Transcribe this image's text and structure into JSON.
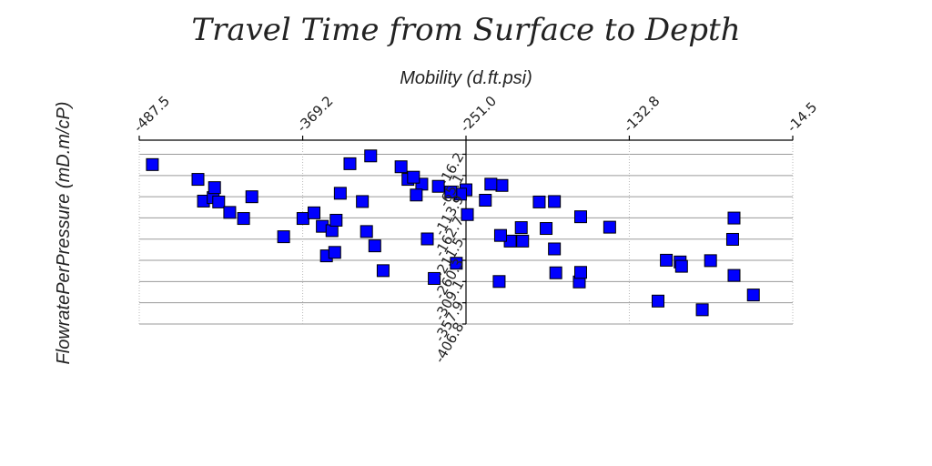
{
  "chart_data": {
    "type": "scatter",
    "title": "Travel Time from Surface to Depth",
    "xlabel": "Mobility (d.ft.psi)",
    "ylabel": "FlowratePerPressure (mD.m/cP)",
    "x_axis_position": "top",
    "x_ticks": [
      "-487.5",
      "-369.2",
      "-251.0",
      "-132.8",
      "-14.5"
    ],
    "xlim": [
      -487.5,
      -14.5
    ],
    "y_ticks": [
      "-16.2",
      "-65.1",
      "-113.9",
      "-162.7",
      "-211.5",
      "-260.3",
      "-309.1",
      "-357.9",
      "-406.8"
    ],
    "ylim": [
      16.2,
      -406.8
    ],
    "grid": true,
    "legend": "none",
    "marker": "square",
    "marker_color": "#0000ff",
    "points": [
      [
        -478,
        -40
      ],
      [
        -445,
        -74
      ],
      [
        -441,
        -124
      ],
      [
        -434,
        -116
      ],
      [
        -433,
        -93
      ],
      [
        -430,
        -126
      ],
      [
        -422,
        -150
      ],
      [
        -412,
        -164
      ],
      [
        -406,
        -114
      ],
      [
        -383,
        -206
      ],
      [
        -369,
        -164
      ],
      [
        -361,
        -151
      ],
      [
        -355,
        -182
      ],
      [
        -352,
        -250
      ],
      [
        -348,
        -192
      ],
      [
        -346,
        -242
      ],
      [
        -345,
        -168
      ],
      [
        -342,
        -106
      ],
      [
        -326,
        -125
      ],
      [
        -323,
        -194
      ],
      [
        -317,
        -227
      ],
      [
        -311,
        -284
      ],
      [
        -279,
        -211
      ],
      [
        -274,
        -302
      ],
      [
        -258,
        -267
      ],
      [
        -250,
        -155
      ],
      [
        -237,
        -122
      ],
      [
        -227,
        -309
      ],
      [
        -219,
        -216
      ],
      [
        -210,
        -216
      ],
      [
        -211,
        -185
      ],
      [
        -226,
        -203
      ],
      [
        -198,
        -126
      ],
      [
        -193,
        -187
      ],
      [
        -186,
        -289
      ],
      [
        -169,
        -310
      ],
      [
        -187,
        -125
      ],
      [
        -187,
        -234
      ],
      [
        -168,
        -288
      ],
      [
        -168,
        -160
      ],
      [
        -147,
        -184
      ],
      [
        -106,
        -260
      ],
      [
        -112,
        -354
      ],
      [
        -74,
        -261
      ],
      [
        -57,
        -163
      ],
      [
        -58,
        -212
      ],
      [
        -57,
        -295
      ],
      [
        -43,
        -340
      ],
      [
        -80,
        -374
      ],
      [
        -96,
        -264
      ],
      [
        -95,
        -274
      ],
      [
        -225,
        -88
      ],
      [
        -233,
        -85
      ],
      [
        -251,
        -98
      ],
      [
        -255,
        -108
      ],
      [
        -262,
        -103
      ],
      [
        -271,
        -90
      ],
      [
        -283,
        -85
      ],
      [
        -287,
        -110
      ],
      [
        -293,
        -74
      ],
      [
        -289,
        -69
      ],
      [
        -298,
        -45
      ],
      [
        -320,
        -20
      ],
      [
        -335,
        -38
      ]
    ]
  }
}
